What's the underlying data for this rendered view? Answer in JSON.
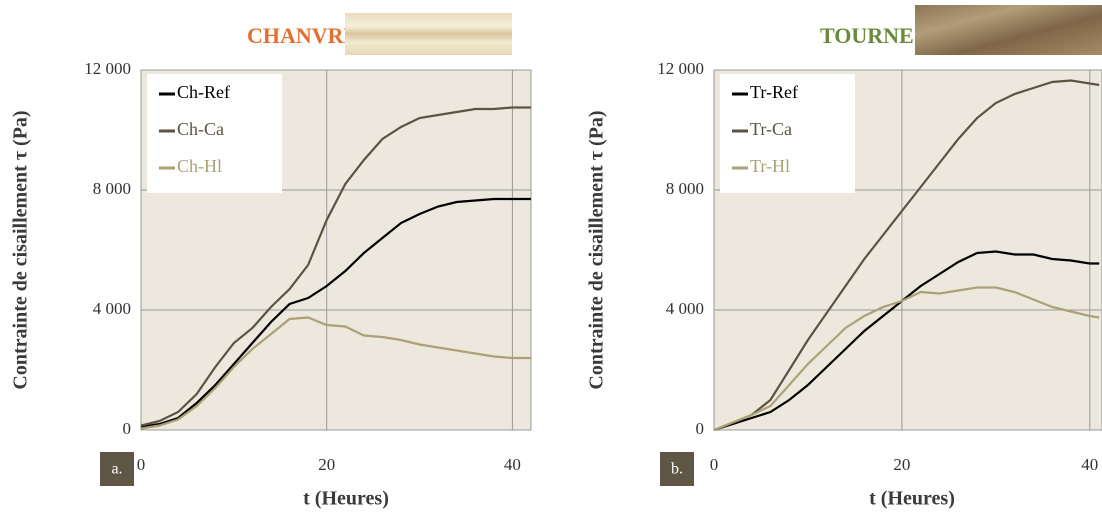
{
  "chart_data": [
    {
      "type": "line",
      "title": "CHANVRE",
      "title_color": "#e2702e",
      "panel_label": "a.",
      "x_label": "t (Heures)",
      "y_label": "Contrainte de cisaillement τ (Pa)",
      "x": [
        0,
        2,
        4,
        6,
        8,
        10,
        12,
        14,
        16,
        18,
        20,
        22,
        24,
        26,
        28,
        30,
        32,
        34,
        36,
        38,
        40,
        42
      ],
      "series": [
        {
          "name": "Ch-Ref",
          "color": "#000000",
          "values": [
            100,
            200,
            400,
            900,
            1500,
            2200,
            2900,
            3600,
            4200,
            4400,
            4800,
            5300,
            5900,
            6400,
            6900,
            7200,
            7450,
            7600,
            7650,
            7700,
            7700,
            7700
          ]
        },
        {
          "name": "Ch-Ca",
          "color": "#5b5344",
          "values": [
            150,
            300,
            600,
            1200,
            2100,
            2900,
            3400,
            4100,
            4700,
            5500,
            7000,
            8200,
            9000,
            9700,
            10100,
            10400,
            10500,
            10600,
            10700,
            10700,
            10750,
            10750
          ]
        },
        {
          "name": "Ch-Hl",
          "color": "#aaa176",
          "values": [
            50,
            150,
            350,
            800,
            1400,
            2100,
            2700,
            3200,
            3700,
            3750,
            3500,
            3450,
            3150,
            3100,
            3000,
            2850,
            2750,
            2650,
            2550,
            2450,
            2400,
            2400
          ]
        }
      ],
      "xlim": [
        0,
        42
      ],
      "ylim": [
        0,
        12000
      ],
      "xticks": [
        0,
        20,
        40
      ],
      "yticks": [
        0,
        {
          "value": 4000,
          "label": "4 000"
        },
        {
          "value": 8000,
          "label": "8 000"
        },
        {
          "value": 12000,
          "label": "12 000"
        }
      ],
      "grid": true
    },
    {
      "type": "line",
      "title": "TOURNESOL",
      "title_color": "#6b8a3c",
      "panel_label": "b.",
      "x_label": "t (Heures)",
      "y_label": "Contrainte de cisaillement τ (Pa)",
      "x": [
        0,
        2,
        4,
        6,
        8,
        10,
        12,
        14,
        16,
        18,
        20,
        22,
        24,
        26,
        28,
        30,
        32,
        34,
        36,
        38,
        40,
        41
      ],
      "series": [
        {
          "name": "Tr-Ref",
          "color": "#000000",
          "values": [
            0,
            200,
            400,
            600,
            1000,
            1500,
            2100,
            2700,
            3300,
            3800,
            4300,
            4800,
            5200,
            5600,
            5900,
            5950,
            5850,
            5850,
            5700,
            5650,
            5550,
            5550
          ]
        },
        {
          "name": "Tr-Ca",
          "color": "#5b5344",
          "values": [
            0,
            250,
            500,
            1000,
            2000,
            3000,
            3900,
            4800,
            5700,
            6500,
            7300,
            8100,
            8900,
            9700,
            10400,
            10900,
            11200,
            11400,
            11600,
            11650,
            11550,
            11500
          ]
        },
        {
          "name": "Tr-Hl",
          "color": "#aaa176",
          "values": [
            0,
            250,
            500,
            800,
            1500,
            2200,
            2800,
            3400,
            3800,
            4100,
            4300,
            4600,
            4550,
            4650,
            4750,
            4750,
            4600,
            4350,
            4100,
            3950,
            3800,
            3750
          ]
        }
      ],
      "xlim": [
        0,
        41.3
      ],
      "ylim": [
        0,
        12000
      ],
      "xticks": [
        0,
        20,
        40
      ],
      "yticks": [
        0,
        {
          "value": 4000,
          "label": "4 000"
        },
        {
          "value": 8000,
          "label": "8 000"
        },
        {
          "value": 12000,
          "label": "12 000"
        }
      ],
      "grid": true
    }
  ]
}
